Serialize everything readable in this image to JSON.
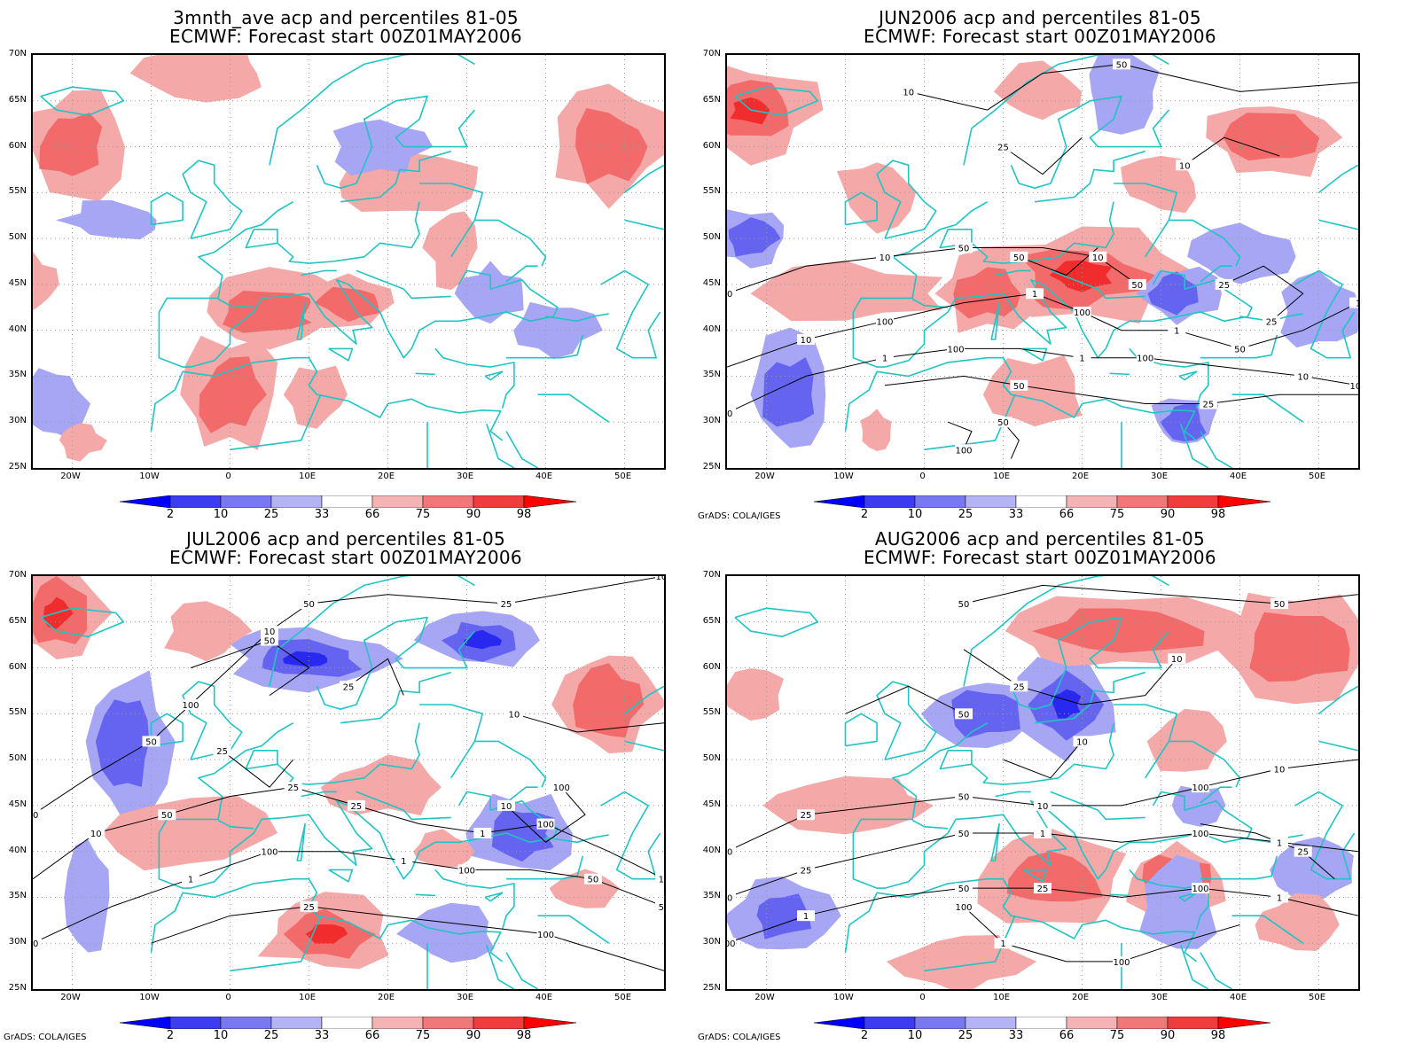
{
  "panels": [
    {
      "id": "p1",
      "title1": "3mnth_ave acp and percentiles 81-05",
      "title2": "ECMWF: Forecast start 00Z01MAY2006",
      "contours": false,
      "credit": "",
      "contour_labels": []
    },
    {
      "id": "p2",
      "title1": "JUN2006 acp and percentiles 81-05",
      "title2": "ECMWF: Forecast start 00Z01MAY2006",
      "contours": true,
      "credit": "GrADS: COLA/IGES",
      "contour_labels": [
        "50",
        "50",
        "50",
        "100",
        "100",
        "50",
        "50",
        "100",
        "100",
        "100",
        "50",
        "25",
        "50",
        "100",
        "10",
        "50",
        "25",
        "10",
        "50",
        "25",
        "25",
        "10",
        "10",
        "10",
        "1",
        "1",
        "1",
        "1",
        "1",
        "10"
      ]
    },
    {
      "id": "p3",
      "title1": "JUL2006 acp and percentiles 81-05",
      "title2": "ECMWF: Forecast start 00Z01MAY2006",
      "contours": true,
      "credit": "GrADS: COLA/IGES",
      "contour_labels": [
        "50",
        "100",
        "50",
        "100",
        "50",
        "25",
        "100",
        "50",
        "100",
        "100",
        "50",
        "25",
        "100",
        "50",
        "25",
        "10",
        "25",
        "10",
        "100",
        "50",
        "10",
        "25",
        "10",
        "25",
        "1",
        "10",
        "1",
        "1",
        "50"
      ]
    },
    {
      "id": "p4",
      "title1": "AUG2006 acp and percentiles 81-05",
      "title2": "ECMWF: Forecast start 00Z01MAY2006",
      "contours": true,
      "credit": "GrADS: COLA/IGES",
      "contour_labels": [
        "50",
        "50",
        "100",
        "50",
        "50",
        "100",
        "100",
        "50",
        "100",
        "100",
        "100",
        "50",
        "50",
        "25",
        "10",
        "50",
        "10",
        "25",
        "25",
        "10",
        "10",
        "25",
        "1",
        "1",
        "1",
        "25",
        "1",
        "1"
      ]
    }
  ],
  "lat_ticks": [
    "70N",
    "65N",
    "60N",
    "55N",
    "50N",
    "45N",
    "40N",
    "35N",
    "30N",
    "25N"
  ],
  "lon_ticks": [
    "20W",
    "10W",
    "0",
    "10E",
    "20E",
    "30E",
    "40E",
    "50E"
  ],
  "colorbar": {
    "labels": [
      "2",
      "10",
      "25",
      "33",
      "66",
      "75",
      "90",
      "98"
    ],
    "colors": [
      "#0000ff",
      "#3c3cf0",
      "#7878f0",
      "#b4b4f5",
      "#ffffff",
      "#f5b4b4",
      "#f07878",
      "#f03c3c",
      "#ff0000"
    ]
  },
  "colors": {
    "coastline": "#20c4c4",
    "contour": "#000000",
    "blue_levels": [
      "#2828ee",
      "#6464f0",
      "#a6a6f5"
    ],
    "red_levels": [
      "#f5a8a8",
      "#f26a6a",
      "#f02c2c"
    ]
  }
}
